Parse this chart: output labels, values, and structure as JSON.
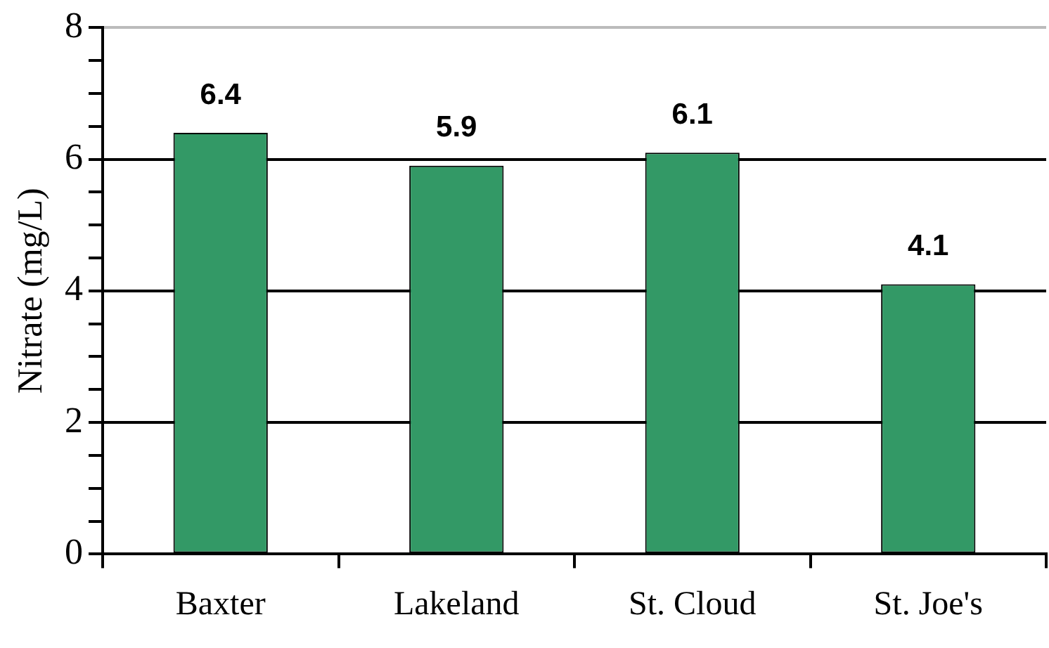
{
  "chart_data": {
    "type": "bar",
    "ylabel": "Nitrate (mg/L)",
    "categories": [
      "Baxter",
      "Lakeland",
      "St. Cloud",
      "St. Joe's"
    ],
    "values": [
      6.4,
      5.9,
      6.1,
      4.1
    ],
    "color": "#339966",
    "ylim": [
      0,
      8
    ],
    "yticks": [
      0,
      {
        "value": 0.5,
        "label": null
      },
      {
        "value": 1,
        "label": null
      },
      {
        "value": 1.5,
        "label": null
      },
      2,
      {
        "value": 2.5,
        "label": null
      },
      {
        "value": 3,
        "label": null
      },
      {
        "value": 3.5,
        "label": null
      },
      4,
      {
        "value": 4.5,
        "label": null
      },
      {
        "value": 5,
        "label": null
      },
      {
        "value": 5.5,
        "label": null
      },
      6,
      {
        "value": 6.5,
        "label": null
      },
      {
        "value": 7,
        "label": null
      },
      {
        "value": 7.5,
        "label": null
      },
      8
    ],
    "grid": "y",
    "data_labels": true,
    "legend": false
  }
}
